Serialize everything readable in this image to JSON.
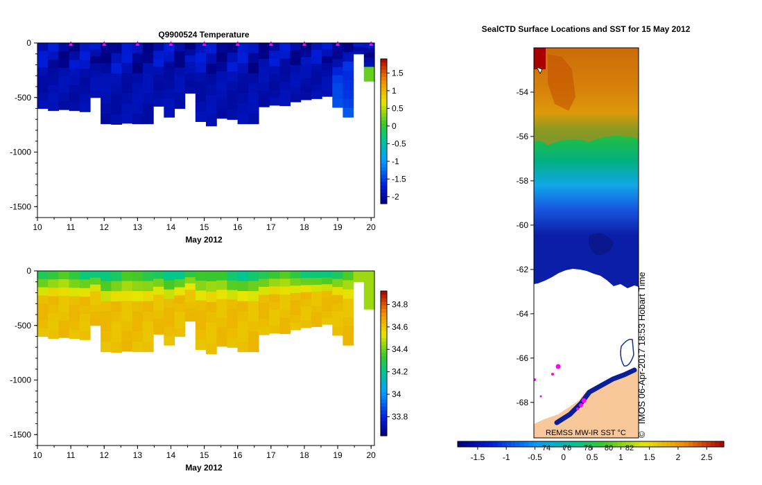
{
  "chart_data": [
    {
      "type": "heatmap",
      "title": "Q9900524  Temperature",
      "xlabel": "May 2012",
      "ylabel": "",
      "x_ticks": [
        "10",
        "11",
        "12",
        "13",
        "14",
        "15",
        "16",
        "17",
        "18",
        "19",
        "20"
      ],
      "xlim": [
        10,
        20.1
      ],
      "ylim": [
        -1600,
        0
      ],
      "y_ticks": [
        {
          "value": 0,
          "label": "0"
        },
        {
          "value": -500,
          "label": "-500"
        },
        {
          "value": -1000,
          "label": "-1000"
        },
        {
          "value": -1500,
          "label": "-1500"
        }
      ],
      "colorbar": {
        "min": -2.2,
        "max": 1.9,
        "ticks": [
          "1.5",
          "1",
          "0.5",
          "0",
          "-0.5",
          "-1",
          "-1.5",
          "-2"
        ],
        "tick_values": [
          1.5,
          1,
          0.5,
          0,
          -0.5,
          -1,
          -1.5,
          -2
        ]
      },
      "profile_marker_days": [
        11,
        12,
        13,
        14,
        15,
        16,
        17,
        18,
        19,
        20
      ],
      "profile_bottom_depth_m": [
        -600,
        -620,
        -610,
        -620,
        -630,
        -500,
        -740,
        -745,
        -735,
        -740,
        -740,
        -580,
        -680,
        -600,
        -460,
        -720,
        -760,
        -690,
        -700,
        -740,
        -740,
        -585,
        -570,
        -575,
        -540,
        -520,
        -510,
        -490,
        -590,
        -680,
        -100,
        -350
      ],
      "series_summary": "near-freezing water (about -1.8 to -2 °C) throughout the upper 750 m; slightly warmer (about -1.3 °C) at depth near 19-20 May"
    },
    {
      "type": "heatmap",
      "title": "",
      "xlabel": "May 2012",
      "ylabel": "",
      "x_ticks": [
        "10",
        "11",
        "12",
        "13",
        "14",
        "15",
        "16",
        "17",
        "18",
        "19",
        "20"
      ],
      "xlim": [
        10,
        20.1
      ],
      "ylim": [
        -1600,
        0
      ],
      "y_ticks": [
        {
          "value": 0,
          "label": "0"
        },
        {
          "value": -500,
          "label": "-500"
        },
        {
          "value": -1000,
          "label": "-1000"
        },
        {
          "value": -1500,
          "label": "-1500"
        }
      ],
      "colorbar": {
        "min": 33.63,
        "max": 34.92,
        "ticks": [
          "34.8",
          "34.6",
          "34.4",
          "34.2",
          "34",
          "33.8"
        ],
        "tick_values": [
          34.8,
          34.6,
          34.4,
          34.2,
          34.0,
          33.8
        ]
      },
      "series_summary": "salinity about 34.2-34.4 near the surface increasing to about 34.6 below 300 m"
    },
    {
      "type": "heatmap",
      "title": "SealCTD Surface Locations and SST for 15 May 2012",
      "ylim": [
        -69.6,
        -52.0
      ],
      "y_ticks": [
        "-54",
        "-56",
        "-58",
        "-60",
        "-62",
        "-64",
        "-66",
        "-68"
      ],
      "y_tick_values": [
        -54,
        -56,
        -58,
        -60,
        -62,
        -64,
        -66,
        -68
      ],
      "colorbar": {
        "min": -1.85,
        "max": 2.8,
        "ticks": [
          "-1.5",
          "-1",
          "-0.5",
          "0",
          "0.5",
          "1",
          "1.5",
          "2",
          "2.5"
        ],
        "tick_values": [
          -1.5,
          -1,
          -0.5,
          0,
          0.5,
          1,
          1.5,
          2,
          2.5
        ]
      },
      "longitude_labels": [
        "74",
        "76",
        "78",
        "80",
        "82"
      ],
      "longitude_label_values": [
        74,
        76,
        78,
        80,
        82
      ],
      "ice_edge_latitude": -63,
      "sst_summary": "about 1.5-2 °C near 53-55 S, cooling to about -1.5 °C near 62 S; sea ice south of about 63 S",
      "credit": "REMSS MW-IR SST °C",
      "stamp": "IMOS 06-Apr-2017 18:53 Hobart Time",
      "copyright_symbol": "©"
    }
  ]
}
